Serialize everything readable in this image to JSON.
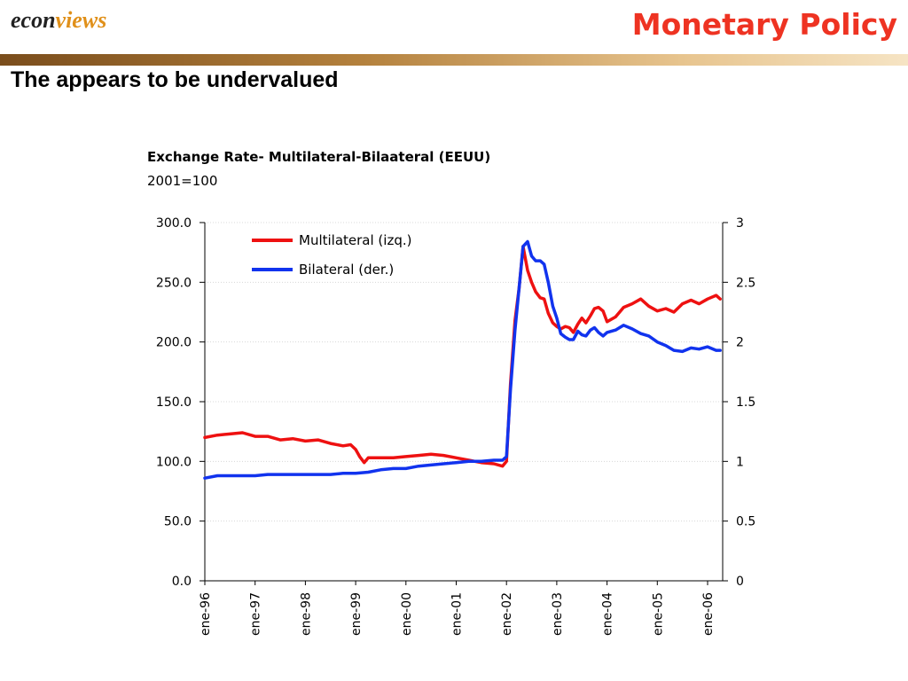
{
  "header": {
    "logo_part1": "econ",
    "logo_part2": "views",
    "title": "Monetary Policy",
    "headline": "The appears to be undervalued"
  },
  "colors": {
    "title": "#ee3322",
    "multilateral": "#ee1111",
    "bilateral": "#1133ee",
    "logo_accent": "#e0901a"
  },
  "chart_data": {
    "type": "line",
    "title": "Exchange Rate- Multilateral-Bilaateral (EEUU)",
    "subtitle": "2001=100",
    "x_ticks": [
      "ene-96",
      "ene-97",
      "ene-98",
      "ene-99",
      "ene-00",
      "ene-01",
      "ene-02",
      "ene-03",
      "ene-04",
      "ene-05",
      "ene-06"
    ],
    "x_range": [
      1996.0,
      2006.3
    ],
    "y_left": {
      "ticks": [
        "0.0",
        "50.0",
        "100.0",
        "150.0",
        "200.0",
        "250.0",
        "300.0"
      ],
      "range": [
        0,
        300
      ]
    },
    "y_right": {
      "ticks": [
        "0",
        "0.5",
        "1",
        "1.5",
        "2",
        "2.5",
        "3"
      ],
      "range": [
        0,
        3
      ]
    },
    "grid": true,
    "legend_position": "top-left",
    "series": [
      {
        "name": "Multilateral (izq.)",
        "axis": "left",
        "x": [
          1996.0,
          1996.25,
          1996.5,
          1996.75,
          1997.0,
          1997.25,
          1997.5,
          1997.75,
          1998.0,
          1998.25,
          1998.5,
          1998.75,
          1998.9,
          1999.0,
          1999.08,
          1999.17,
          1999.25,
          1999.5,
          1999.75,
          2000.0,
          2000.25,
          2000.5,
          2000.75,
          2001.0,
          2001.25,
          2001.5,
          2001.75,
          2001.92,
          2002.0,
          2002.08,
          2002.17,
          2002.25,
          2002.33,
          2002.42,
          2002.5,
          2002.58,
          2002.67,
          2002.75,
          2002.83,
          2002.92,
          2003.0,
          2003.08,
          2003.17,
          2003.25,
          2003.33,
          2003.42,
          2003.5,
          2003.58,
          2003.67,
          2003.75,
          2003.83,
          2003.92,
          2004.0,
          2004.17,
          2004.33,
          2004.5,
          2004.67,
          2004.83,
          2005.0,
          2005.17,
          2005.33,
          2005.5,
          2005.67,
          2005.83,
          2006.0,
          2006.17,
          2006.25
        ],
        "y": [
          120,
          122,
          123,
          124,
          121,
          121,
          118,
          119,
          117,
          118,
          115,
          113,
          114,
          110,
          104,
          99,
          103,
          103,
          103,
          104,
          105,
          106,
          105,
          103,
          101,
          99,
          98,
          96,
          100,
          165,
          218,
          245,
          280,
          260,
          250,
          242,
          237,
          236,
          224,
          216,
          213,
          211,
          213,
          212,
          208,
          215,
          220,
          216,
          222,
          228,
          229,
          226,
          217,
          221,
          229,
          232,
          236,
          230,
          226,
          228,
          225,
          232,
          235,
          232,
          236,
          239,
          236
        ],
        "color": "#ee1111"
      },
      {
        "name": "Bilateral (der.)",
        "axis": "right",
        "x": [
          1996.0,
          1996.25,
          1996.5,
          1996.75,
          1997.0,
          1997.25,
          1997.5,
          1997.75,
          1998.0,
          1998.25,
          1998.5,
          1998.75,
          1999.0,
          1999.25,
          1999.5,
          1999.75,
          2000.0,
          2000.25,
          2000.5,
          2000.75,
          2001.0,
          2001.25,
          2001.5,
          2001.75,
          2001.92,
          2002.0,
          2002.08,
          2002.17,
          2002.25,
          2002.33,
          2002.42,
          2002.5,
          2002.58,
          2002.67,
          2002.75,
          2002.83,
          2002.92,
          2003.0,
          2003.08,
          2003.17,
          2003.25,
          2003.33,
          2003.42,
          2003.5,
          2003.58,
          2003.67,
          2003.75,
          2003.83,
          2003.92,
          2004.0,
          2004.17,
          2004.33,
          2004.5,
          2004.67,
          2004.83,
          2005.0,
          2005.17,
          2005.33,
          2005.5,
          2005.67,
          2005.83,
          2006.0,
          2006.17,
          2006.25
        ],
        "y": [
          0.86,
          0.88,
          0.88,
          0.88,
          0.88,
          0.89,
          0.89,
          0.89,
          0.89,
          0.89,
          0.89,
          0.9,
          0.9,
          0.91,
          0.93,
          0.94,
          0.94,
          0.96,
          0.97,
          0.98,
          0.99,
          1.0,
          1.0,
          1.01,
          1.01,
          1.04,
          1.6,
          2.1,
          2.45,
          2.8,
          2.84,
          2.72,
          2.68,
          2.68,
          2.65,
          2.5,
          2.3,
          2.2,
          2.07,
          2.04,
          2.02,
          2.02,
          2.09,
          2.06,
          2.05,
          2.1,
          2.12,
          2.08,
          2.05,
          2.08,
          2.1,
          2.14,
          2.11,
          2.07,
          2.05,
          2.0,
          1.97,
          1.93,
          1.92,
          1.95,
          1.94,
          1.96,
          1.93,
          1.93
        ],
        "color": "#1133ee"
      }
    ]
  }
}
